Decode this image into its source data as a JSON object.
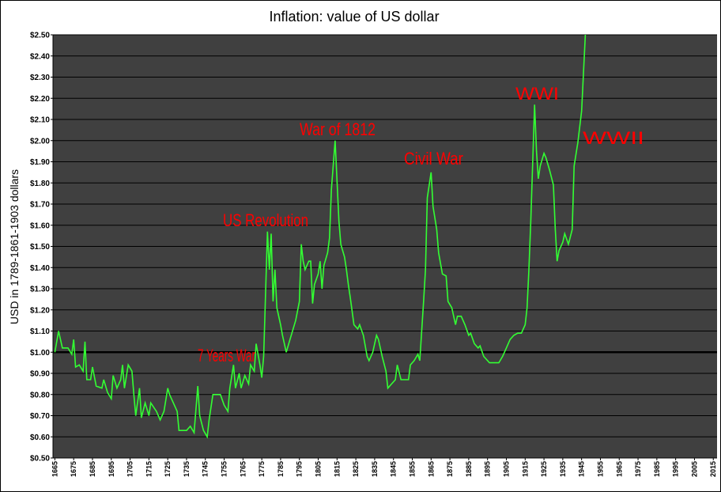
{
  "chart_data": {
    "type": "line",
    "title": "Inflation:  value of US dollar",
    "y_label": "USD in 1789-1861-1903 dollars",
    "annotations": [
      "US Revolution",
      "War of 1812",
      "Civil War",
      "WWI",
      "WWII",
      "7 Years War"
    ],
    "x": [
      1665,
      1667,
      1669,
      1672,
      1674,
      1675,
      1676,
      1678,
      1680,
      1681,
      1682,
      1684,
      1685,
      1687,
      1690,
      1691,
      1693,
      1695,
      1696,
      1698,
      1700,
      1701,
      1702,
      1704,
      1706,
      1707,
      1708,
      1710,
      1711,
      1713,
      1715,
      1716,
      1719,
      1721,
      1723,
      1725,
      1726,
      1728,
      1730,
      1731,
      1733,
      1735,
      1737,
      1739,
      1741,
      1742,
      1744,
      1746,
      1747,
      1749,
      1751,
      1753,
      1755,
      1757,
      1758,
      1760,
      1761,
      1763,
      1764,
      1766,
      1768,
      1769,
      1771,
      1772,
      1774,
      1775,
      1776,
      1778,
      1779,
      1780,
      1781,
      1782,
      1783,
      1785,
      1786,
      1788,
      1790,
      1791,
      1793,
      1795,
      1796,
      1797,
      1798,
      1800,
      1801,
      1802,
      1803,
      1805,
      1806,
      1807,
      1808,
      1810,
      1811,
      1812,
      1814,
      1816,
      1817,
      1819,
      1820,
      1821,
      1822,
      1824,
      1826,
      1827,
      1829,
      1831,
      1832,
      1834,
      1836,
      1837,
      1839,
      1841,
      1842,
      1844,
      1846,
      1847,
      1849,
      1851,
      1853,
      1854,
      1856,
      1858,
      1859,
      1861,
      1862,
      1863,
      1865,
      1866,
      1868,
      1869,
      1871,
      1873,
      1874,
      1876,
      1878,
      1879,
      1881,
      1883,
      1885,
      1886,
      1888,
      1890,
      1891,
      1893,
      1895,
      1896,
      1901,
      1903,
      1905,
      1907,
      1909,
      1911,
      1913,
      1915,
      1916,
      1917,
      1918,
      1920,
      1921,
      1922,
      1923,
      1925,
      1926,
      1928,
      1930,
      1931,
      1932,
      1933,
      1935,
      1936,
      1938,
      1940,
      1941,
      1943,
      1945,
      1947
    ],
    "series": [
      {
        "color": "#33ff33",
        "values": [
          1.0,
          1.1,
          1.02,
          1.02,
          0.99,
          1.06,
          0.93,
          0.94,
          0.91,
          1.05,
          0.87,
          0.87,
          0.93,
          0.84,
          0.83,
          0.87,
          0.81,
          0.78,
          0.89,
          0.83,
          0.87,
          0.94,
          0.83,
          0.94,
          0.91,
          0.8,
          0.7,
          0.83,
          0.69,
          0.76,
          0.7,
          0.76,
          0.72,
          0.68,
          0.72,
          0.83,
          0.8,
          0.76,
          0.72,
          0.63,
          0.63,
          0.63,
          0.65,
          0.62,
          0.84,
          0.7,
          0.63,
          0.6,
          0.68,
          0.8,
          0.8,
          0.8,
          0.75,
          0.72,
          0.83,
          0.94,
          0.83,
          0.9,
          0.83,
          0.89,
          0.85,
          0.94,
          0.91,
          1.04,
          0.94,
          0.88,
          0.98,
          1.57,
          1.39,
          1.56,
          1.24,
          1.39,
          1.21,
          1.13,
          1.08,
          1.0,
          1.06,
          1.09,
          1.15,
          1.24,
          1.51,
          1.43,
          1.39,
          1.43,
          1.43,
          1.23,
          1.32,
          1.37,
          1.43,
          1.3,
          1.41,
          1.47,
          1.54,
          1.77,
          2.0,
          1.62,
          1.51,
          1.45,
          1.39,
          1.32,
          1.26,
          1.13,
          1.11,
          1.13,
          1.08,
          0.98,
          0.96,
          1.0,
          1.08,
          1.06,
          0.98,
          0.91,
          0.83,
          0.85,
          0.87,
          0.94,
          0.87,
          0.87,
          0.87,
          0.94,
          0.96,
          0.99,
          0.96,
          1.24,
          1.39,
          1.73,
          1.85,
          1.69,
          1.58,
          1.47,
          1.37,
          1.36,
          1.24,
          1.21,
          1.13,
          1.17,
          1.17,
          1.13,
          1.08,
          1.09,
          1.04,
          1.02,
          1.03,
          0.98,
          0.96,
          0.95,
          0.95,
          0.98,
          1.02,
          1.06,
          1.08,
          1.09,
          1.09,
          1.13,
          1.21,
          1.39,
          1.62,
          2.17,
          1.95,
          1.82,
          1.88,
          1.94,
          1.92,
          1.86,
          1.79,
          1.58,
          1.43,
          1.48,
          1.52,
          1.56,
          1.51,
          1.58,
          1.88,
          1.99,
          2.14,
          2.5
        ]
      }
    ],
    "reference_line": 1.0,
    "xlim": [
      1664,
      2017
    ],
    "xticks": [
      1665,
      1675,
      1685,
      1695,
      1705,
      1715,
      1725,
      1735,
      1745,
      1755,
      1765,
      1775,
      1785,
      1795,
      1805,
      1815,
      1825,
      1835,
      1845,
      1855,
      1865,
      1875,
      1885,
      1895,
      1905,
      1915,
      1925,
      1935,
      1945,
      1955,
      1965,
      1975,
      1985,
      1995,
      2005,
      2015
    ],
    "ylim": [
      0.5,
      2.5
    ],
    "yticks": [
      {
        "value": 0.5,
        "label": "$0.50"
      },
      {
        "value": 0.6,
        "label": "$0.60"
      },
      {
        "value": 0.7,
        "label": "$0.70"
      },
      {
        "value": 0.8,
        "label": "$0.80"
      },
      {
        "value": 0.9,
        "label": "$0.90"
      },
      {
        "value": 1.0,
        "label": "$1.00"
      },
      {
        "value": 1.1,
        "label": "$1.10"
      },
      {
        "value": 1.2,
        "label": "$1.20"
      },
      {
        "value": 1.3,
        "label": "$1.30"
      },
      {
        "value": 1.4,
        "label": "$1.40"
      },
      {
        "value": 1.5,
        "label": "$1.50"
      },
      {
        "value": 1.6,
        "label": "$1.60"
      },
      {
        "value": 1.7,
        "label": "$1.70"
      },
      {
        "value": 1.8,
        "label": "$1.80"
      },
      {
        "value": 1.9,
        "label": "$1.90"
      },
      {
        "value": 2.0,
        "label": "$2.00"
      },
      {
        "value": 2.1,
        "label": "$2.10"
      },
      {
        "value": 2.2,
        "label": "$2.20"
      },
      {
        "value": 2.3,
        "label": "$2.30"
      },
      {
        "value": 2.4,
        "label": "$2.40"
      },
      {
        "value": 2.5,
        "label": "$2.50"
      }
    ],
    "grid": true
  }
}
